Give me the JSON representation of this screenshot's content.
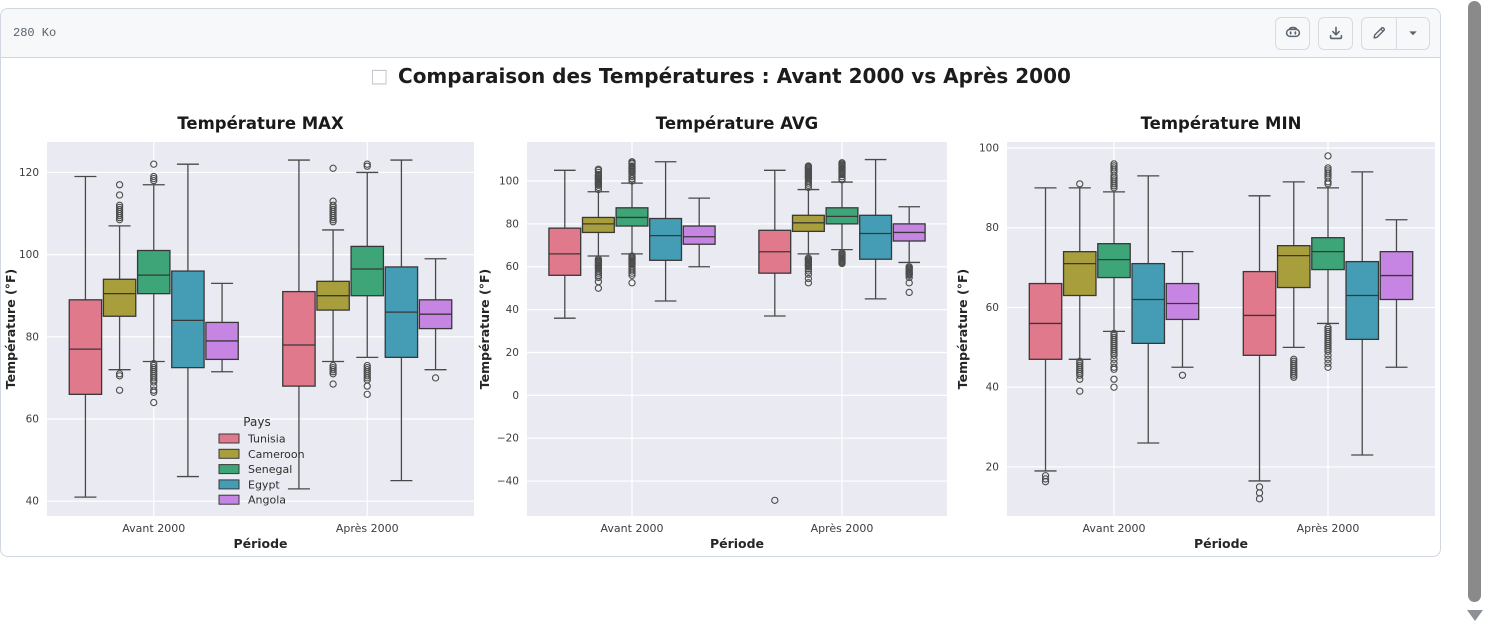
{
  "header": {
    "file_size": "280 Ko"
  },
  "toolbar": {
    "buttons": [
      {
        "icon": "copilot-icon"
      },
      {
        "icon": "download-icon"
      },
      {
        "icon": "pencil-icon"
      },
      {
        "icon": "triangle-down-icon"
      }
    ]
  },
  "scrollbar": {
    "thumb_color": "#8a8a8a"
  },
  "chart_data": {
    "type": "box",
    "missing_glyph": "□",
    "suptitle": "Comparaison des Températures : Avant 2000 vs Après 2000",
    "xlabel": "Période",
    "ylabel": "Température (°F)",
    "categories": [
      "Avant 2000",
      "Après 2000"
    ],
    "legend_title": "Pays",
    "legend_position": "lower left of first subplot",
    "grid": true,
    "colors": {
      "plot_bg": "#eaebf2",
      "grid": "#ffffff",
      "box_edge": "#383838",
      "whisker": "#494949",
      "flier": "#4c4c4c"
    },
    "countries": [
      {
        "name": "Tunisia",
        "color": "#e0798c"
      },
      {
        "name": "Cameroon",
        "color": "#a89e3b"
      },
      {
        "name": "Senegal",
        "color": "#3da578"
      },
      {
        "name": "Egypt",
        "color": "#459db5"
      },
      {
        "name": "Angola",
        "color": "#c685e2"
      }
    ],
    "subplots": [
      {
        "title": "Température MAX",
        "ylim": [
          36.4,
          127.4
        ],
        "yticks": [
          40,
          60,
          80,
          100,
          120
        ],
        "groups": [
          [
            {
              "lo": 41,
              "q1": 66,
              "med": 77,
              "q3": 89,
              "hi": 119,
              "out": []
            },
            {
              "lo": 72,
              "q1": 85,
              "med": 90.5,
              "q3": 94,
              "hi": 107,
              "out": [
                117,
                114.5,
                112,
                111.5,
                111,
                110.5,
                110,
                109.5,
                109,
                108.5,
                71,
                70.5,
                67
              ]
            },
            {
              "lo": 74,
              "q1": 90.5,
              "med": 95,
              "q3": 101,
              "hi": 117,
              "out": [
                122,
                119,
                118.5,
                118,
                73.5,
                73,
                72.5,
                72,
                71.5,
                71,
                70.5,
                70,
                69.5,
                69,
                68,
                67,
                66.5,
                64
              ]
            },
            {
              "lo": 46,
              "q1": 72.5,
              "med": 84,
              "q3": 96,
              "hi": 122,
              "out": []
            },
            {
              "lo": 71.5,
              "q1": 74.5,
              "med": 79,
              "q3": 83.5,
              "hi": 93,
              "out": []
            }
          ],
          [
            {
              "lo": 43,
              "q1": 68,
              "med": 78,
              "q3": 91,
              "hi": 123,
              "out": []
            },
            {
              "lo": 74,
              "q1": 86.5,
              "med": 90,
              "q3": 93.5,
              "hi": 106,
              "out": [
                121,
                113,
                112,
                111.5,
                111,
                110.5,
                110,
                109.5,
                109,
                108.5,
                108,
                73,
                72.5,
                72,
                71.5,
                71,
                68.5
              ]
            },
            {
              "lo": 75,
              "q1": 90,
              "med": 96.5,
              "q3": 102,
              "hi": 120,
              "out": [
                122,
                121.5,
                73,
                72.5,
                72,
                71.5,
                71,
                70.5,
                70,
                69.5,
                68,
                66
              ]
            },
            {
              "lo": 45,
              "q1": 75,
              "med": 86,
              "q3": 97,
              "hi": 123,
              "out": []
            },
            {
              "lo": 72,
              "q1": 82,
              "med": 85.5,
              "q3": 89,
              "hi": 99,
              "out": [
                70
              ]
            }
          ]
        ]
      },
      {
        "title": "Température AVG",
        "ylim": [
          -56.3,
          118.2
        ],
        "yticks": [
          -40,
          -20,
          0,
          20,
          40,
          60,
          80,
          100
        ],
        "groups": [
          [
            {
              "lo": 36,
              "q1": 56,
              "med": 66,
              "q3": 78,
              "hi": 105,
              "out": []
            },
            {
              "lo": 65,
              "q1": 76,
              "med": 80,
              "q3": 83,
              "hi": 95,
              "out": [
                105.5,
                105,
                104,
                103,
                102.5,
                102,
                101.5,
                101,
                100.5,
                100,
                99.5,
                99,
                98.5,
                98,
                97,
                96,
                63.5,
                63,
                62.5,
                62,
                61.5,
                61,
                60.5,
                60,
                59.5,
                59,
                58,
                57,
                56,
                55,
                53,
                50
              ]
            },
            {
              "lo": 66,
              "q1": 79,
              "med": 83,
              "q3": 87.5,
              "hi": 99,
              "out": [
                109,
                108.5,
                108,
                107,
                106.5,
                106,
                105.5,
                105,
                104.5,
                104,
                103,
                102,
                101,
                100,
                65,
                64.5,
                64,
                63.5,
                63,
                62.5,
                62,
                61.5,
                61,
                60,
                59,
                58,
                57,
                56,
                52.5
              ]
            },
            {
              "lo": 44,
              "q1": 63,
              "med": 74.5,
              "q3": 82.5,
              "hi": 109,
              "out": []
            },
            {
              "lo": 60,
              "q1": 70.5,
              "med": 74,
              "q3": 79,
              "hi": 92,
              "out": []
            }
          ],
          [
            {
              "lo": 37,
              "q1": 57,
              "med": 67,
              "q3": 77,
              "hi": 105,
              "out": [
                -49
              ]
            },
            {
              "lo": 66,
              "q1": 76.5,
              "med": 80.5,
              "q3": 84,
              "hi": 96,
              "out": [
                107,
                106.5,
                106,
                105.5,
                105,
                104.5,
                104,
                103.5,
                103,
                102.5,
                102,
                101.5,
                101,
                100,
                99,
                98,
                97,
                64,
                63.5,
                63,
                62.5,
                62,
                61.5,
                61,
                60.5,
                60,
                59,
                58,
                56.5,
                54.5,
                52.5
              ]
            },
            {
              "lo": 68,
              "q1": 80,
              "med": 83.5,
              "q3": 87.5,
              "hi": 99.5,
              "out": [
                108.5,
                108,
                107.5,
                107,
                106.5,
                106,
                105.5,
                105,
                104.5,
                104,
                103.5,
                103,
                102,
                101,
                100.5,
                66.5,
                66,
                65.5,
                65,
                64.5,
                64,
                63.5,
                63,
                62.5,
                62,
                61.5
              ]
            },
            {
              "lo": 45,
              "q1": 63.5,
              "med": 75.5,
              "q3": 84,
              "hi": 110,
              "out": []
            },
            {
              "lo": 62,
              "q1": 72,
              "med": 76,
              "q3": 80,
              "hi": 88,
              "out": [
                60,
                59.5,
                59,
                58.5,
                58,
                57.5,
                57,
                56.5,
                56,
                55,
                52.5,
                48
              ]
            }
          ]
        ]
      },
      {
        "title": "Température MIN",
        "ylim": [
          7.7,
          101.5
        ],
        "yticks": [
          20,
          40,
          60,
          80,
          100
        ],
        "groups": [
          [
            {
              "lo": 19,
              "q1": 47,
              "med": 56,
              "q3": 66,
              "hi": 90,
              "out": [
                17.8,
                17,
                16.3
              ]
            },
            {
              "lo": 47,
              "q1": 63,
              "med": 71,
              "q3": 74,
              "hi": 90,
              "out": [
                91,
                46.5,
                46,
                45.5,
                45,
                44.5,
                44,
                43.5,
                43,
                42,
                39
              ]
            },
            {
              "lo": 54,
              "q1": 67.5,
              "med": 72,
              "q3": 76,
              "hi": 89,
              "out": [
                96,
                95.5,
                95,
                94.5,
                94,
                93,
                92.5,
                92,
                91.5,
                91,
                90.5,
                90,
                53.5,
                53,
                52.5,
                52,
                51.5,
                51,
                50.5,
                50,
                49.5,
                49,
                48.5,
                48,
                47,
                46,
                45,
                44.5,
                42,
                40
              ]
            },
            {
              "lo": 26,
              "q1": 51,
              "med": 62,
              "q3": 71,
              "hi": 93,
              "out": []
            },
            {
              "lo": 45,
              "q1": 57,
              "med": 61,
              "q3": 66,
              "hi": 74,
              "out": [
                43
              ]
            }
          ],
          [
            {
              "lo": 16.5,
              "q1": 48,
              "med": 58,
              "q3": 69,
              "hi": 88,
              "out": [
                15,
                13.5,
                12
              ]
            },
            {
              "lo": 50,
              "q1": 65,
              "med": 73,
              "q3": 75.5,
              "hi": 91.5,
              "out": [
                47,
                46.5,
                46,
                45.5,
                45,
                44.5,
                44,
                43.5,
                43,
                42.5
              ]
            },
            {
              "lo": 56,
              "q1": 69.5,
              "med": 74,
              "q3": 77.5,
              "hi": 90,
              "out": [
                98,
                95,
                94.5,
                94,
                93.5,
                93,
                92.5,
                91.5,
                91,
                55,
                54.5,
                54,
                53.5,
                53,
                52.5,
                52,
                51.5,
                51,
                50.5,
                50,
                49.5,
                49,
                48,
                47,
                46,
                45
              ]
            },
            {
              "lo": 23,
              "q1": 52,
              "med": 63,
              "q3": 71.5,
              "hi": 94,
              "out": []
            },
            {
              "lo": 45,
              "q1": 62,
              "med": 68,
              "q3": 74,
              "hi": 82,
              "out": []
            }
          ]
        ]
      }
    ]
  }
}
